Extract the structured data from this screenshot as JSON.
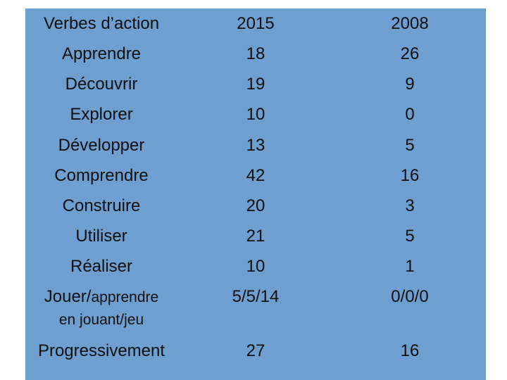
{
  "table": {
    "headers": {
      "verb": "Verbes d’action",
      "year_a": "2015",
      "year_b": "2008"
    },
    "rows": [
      {
        "verb": "Apprendre",
        "y2015": "18",
        "y2008": "26"
      },
      {
        "verb": "Découvrir",
        "y2015": "19",
        "y2008": "9"
      },
      {
        "verb": "Explorer",
        "y2015": "10",
        "y2008": "0"
      },
      {
        "verb": "Développer",
        "y2015": "13",
        "y2008": "5"
      },
      {
        "verb": "Comprendre",
        "y2015": "42",
        "y2008": "16"
      },
      {
        "verb": "Construire",
        "y2015": "20",
        "y2008": "3"
      },
      {
        "verb": "Utiliser",
        "y2015": "21",
        "y2008": "5"
      },
      {
        "verb": "Réaliser",
        "y2015": "10",
        "y2008": "1"
      },
      {
        "verb_part1": "Jouer/",
        "verb_part2": "apprendre",
        "verb_line2": "en jouant/jeu",
        "y2015": "5/5/14",
        "y2008": "0/0/0"
      },
      {
        "verb": "Progressivement",
        "y2015": "27",
        "y2008": "16"
      }
    ]
  },
  "colors": {
    "panel_background": "#6f9ed1",
    "text": "#111111"
  }
}
